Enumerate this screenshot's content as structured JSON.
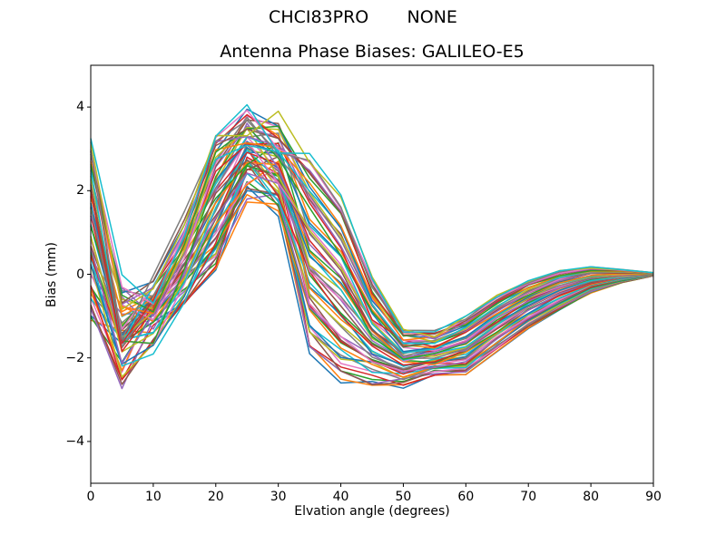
{
  "figure": {
    "suptitle": "CHCI83PRO       NONE",
    "background": "#ffffff"
  },
  "chart_data": {
    "type": "line",
    "title": "Antenna Phase Biases: GALILEO-E5",
    "xlabel": "Elvation angle (degrees)",
    "ylabel": "Bias (mm)",
    "xlim": [
      0,
      90
    ],
    "ylim": [
      -5,
      5
    ],
    "xticks": [
      0,
      10,
      20,
      30,
      40,
      50,
      60,
      70,
      80,
      90
    ],
    "xtick_labels": [
      "0",
      "10",
      "20",
      "30",
      "40",
      "50",
      "60",
      "70",
      "80",
      "90"
    ],
    "yticks": [
      4,
      2,
      0,
      -2,
      -4
    ],
    "ytick_labels": [
      "4",
      "2",
      "0",
      "−2",
      "−4"
    ],
    "grid": false,
    "legend": "none",
    "axes_color": "#000000",
    "x": [
      0,
      5,
      10,
      15,
      20,
      25,
      30,
      35,
      40,
      45,
      50,
      55,
      60,
      65,
      70,
      75,
      80,
      85,
      90
    ],
    "envelope": {
      "max": [
        3.25,
        0.15,
        0.05,
        1.6,
        3.35,
        4.3,
        4.0,
        2.9,
        1.9,
        0.0,
        -1.25,
        -1.3,
        -1.0,
        -0.5,
        -0.15,
        0.1,
        0.18,
        0.12,
        0.04
      ],
      "min": [
        -1.1,
        -2.9,
        -2.55,
        -1.2,
        0.1,
        1.3,
        0.9,
        -1.9,
        -2.6,
        -2.8,
        -2.75,
        -2.5,
        -2.4,
        -1.85,
        -1.3,
        -0.85,
        -0.45,
        -0.2,
        -0.04
      ]
    },
    "n_series": 60,
    "line_width": 1.5,
    "color_cycle": [
      "#1f77b4",
      "#ff7f0e",
      "#2ca02c",
      "#d62728",
      "#9467bd",
      "#8c564b",
      "#e377c2",
      "#7f7f7f",
      "#bcbd22",
      "#17becf"
    ]
  }
}
